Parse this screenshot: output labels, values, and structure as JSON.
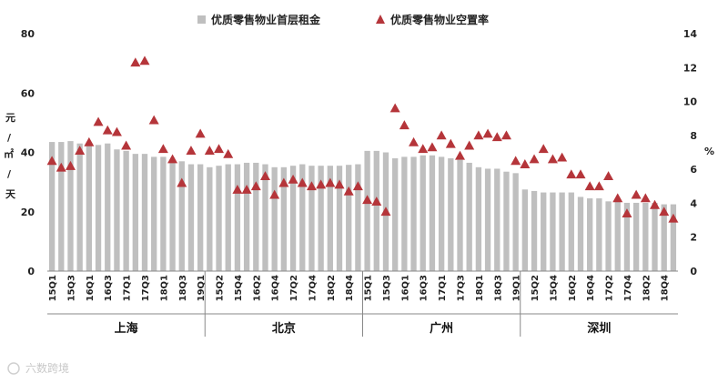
{
  "legend": {
    "rent_label": "优质零售物业首层租金",
    "vacancy_label": "优质零售物业空置率"
  },
  "left_unit": [
    "元",
    "/",
    "㎡",
    "/",
    "天"
  ],
  "right_unit": "%",
  "watermark": "六数跨境",
  "colors": {
    "bar": "#bfbfbf",
    "marker": "#b5353a",
    "axis": "#888888"
  },
  "chart_data": {
    "type": "bar",
    "title": "",
    "left_axis": {
      "min": 0,
      "max": 80,
      "ticks": [
        0,
        20,
        40,
        60,
        80
      ]
    },
    "right_axis": {
      "min": 0,
      "max": 14,
      "ticks": [
        0,
        2,
        4,
        6,
        8,
        10,
        12,
        14
      ]
    },
    "legend_position": "top",
    "groups": [
      {
        "city": "上海",
        "tick_labels": [
          "15Q1",
          "15Q3",
          "16Q1",
          "16Q3",
          "17Q1",
          "17Q3",
          "18Q1",
          "18Q3",
          "19Q1"
        ],
        "quarters": [
          "15Q1",
          "15Q2",
          "15Q3",
          "15Q4",
          "16Q1",
          "16Q2",
          "16Q3",
          "16Q4",
          "17Q1",
          "17Q2",
          "17Q3",
          "17Q4",
          "18Q1",
          "18Q2",
          "18Q3",
          "18Q4",
          "19Q1"
        ],
        "rent": [
          43.5,
          43.5,
          43.8,
          43.0,
          43.0,
          42.5,
          43.0,
          41.0,
          40.5,
          39.5,
          39.5,
          38.5,
          38.5,
          37.5,
          37.0,
          36.0,
          36.0
        ],
        "vacancy": [
          6.5,
          6.1,
          6.2,
          7.1,
          7.6,
          8.8,
          8.3,
          8.2,
          7.4,
          12.3,
          12.4,
          8.9,
          7.2,
          6.6,
          5.2,
          7.1,
          8.1
        ]
      },
      {
        "city": "北京",
        "tick_labels": [
          "15Q2",
          "15Q4",
          "16Q2",
          "16Q4",
          "17Q2",
          "17Q4",
          "18Q2",
          "18Q4"
        ],
        "quarters": [
          "15Q1",
          "15Q2",
          "15Q3",
          "15Q4",
          "16Q1",
          "16Q2",
          "16Q3",
          "16Q4",
          "17Q1",
          "17Q2",
          "17Q3",
          "17Q4",
          "18Q1",
          "18Q2",
          "18Q3",
          "18Q4",
          "19Q1"
        ],
        "rent": [
          35.0,
          35.5,
          36.0,
          36.0,
          36.5,
          36.5,
          36.0,
          35.0,
          35.0,
          35.5,
          36.0,
          35.5,
          35.5,
          35.5,
          35.5,
          35.8,
          36.0
        ],
        "vacancy": [
          7.1,
          7.2,
          6.9,
          4.8,
          4.8,
          5.0,
          5.6,
          4.5,
          5.2,
          5.4,
          5.2,
          5.0,
          5.1,
          5.2,
          5.1,
          4.7,
          5.0
        ]
      },
      {
        "city": "广州",
        "tick_labels": [
          "15Q1",
          "15Q3",
          "16Q1",
          "16Q3",
          "17Q1",
          "17Q3",
          "18Q1",
          "18Q3",
          "19Q1"
        ],
        "quarters": [
          "15Q1",
          "15Q2",
          "15Q3",
          "15Q4",
          "16Q1",
          "16Q2",
          "16Q3",
          "16Q4",
          "17Q1",
          "17Q2",
          "17Q3",
          "17Q4",
          "18Q1",
          "18Q2",
          "18Q3",
          "18Q4",
          "19Q1"
        ],
        "rent": [
          40.5,
          40.5,
          40.0,
          38.0,
          38.5,
          38.5,
          39.0,
          39.0,
          38.5,
          38.0,
          37.5,
          36.5,
          35.0,
          34.5,
          34.5,
          33.5,
          33.0
        ],
        "vacancy": [
          4.2,
          4.1,
          3.5,
          9.6,
          8.6,
          7.6,
          7.2,
          7.3,
          8.0,
          7.5,
          6.8,
          7.4,
          8.0,
          8.1,
          7.9,
          8.0,
          6.5
        ]
      },
      {
        "city": "深圳",
        "tick_labels": [
          "15Q2",
          "15Q4",
          "16Q2",
          "16Q4",
          "17Q2",
          "17Q4",
          "18Q2",
          "18Q4"
        ],
        "quarters": [
          "15Q1",
          "15Q2",
          "15Q3",
          "15Q4",
          "16Q1",
          "16Q2",
          "16Q3",
          "16Q4",
          "17Q1",
          "17Q2",
          "17Q3",
          "17Q4",
          "18Q1",
          "18Q2",
          "18Q3",
          "18Q4",
          "19Q1"
        ],
        "rent": [
          27.5,
          27.0,
          26.5,
          26.5,
          26.5,
          26.5,
          25.0,
          24.5,
          24.5,
          23.5,
          23.5,
          23.0,
          23.0,
          23.0,
          23.0,
          22.5,
          22.5
        ],
        "vacancy": [
          6.3,
          6.6,
          7.2,
          6.6,
          6.7,
          5.7,
          5.7,
          5.0,
          5.0,
          5.6,
          4.3,
          3.4,
          4.5,
          4.3,
          3.9,
          3.5,
          3.1
        ]
      }
    ]
  }
}
